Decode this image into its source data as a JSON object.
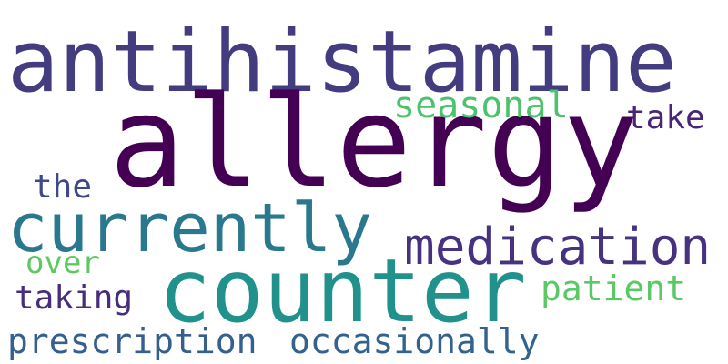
{
  "words": [
    {
      "key": "antihistamine",
      "text": "antihistamine",
      "color": "#433d80"
    },
    {
      "key": "allergy",
      "text": "allergy",
      "color": "#440154"
    },
    {
      "key": "seasonal",
      "text": "seasonal",
      "color": "#4cc26c"
    },
    {
      "key": "take",
      "text": "take",
      "color": "#482576"
    },
    {
      "key": "the",
      "text": "the",
      "color": "#3e4989"
    },
    {
      "key": "currently",
      "text": "currently",
      "color": "#2a788e"
    },
    {
      "key": "medication",
      "text": "medication",
      "color": "#46327e"
    },
    {
      "key": "counter",
      "text": "counter",
      "color": "#21918c"
    },
    {
      "key": "over",
      "text": "over",
      "color": "#5ec962"
    },
    {
      "key": "patient",
      "text": "patient",
      "color": "#5ac864"
    },
    {
      "key": "taking",
      "text": "taking",
      "color": "#472d7b"
    },
    {
      "key": "prescription",
      "text": "prescription",
      "color": "#355f8d"
    },
    {
      "key": "occasionally",
      "text": "occasionally",
      "color": "#33638d"
    }
  ]
}
